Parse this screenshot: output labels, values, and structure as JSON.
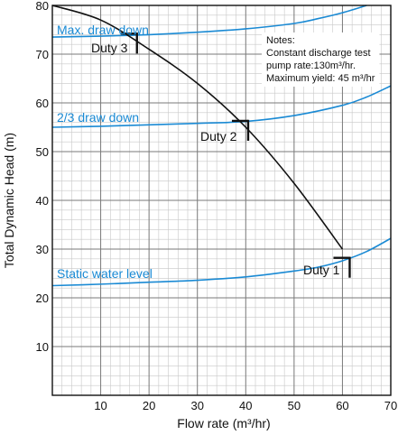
{
  "chart_data": {
    "type": "line",
    "xlabel": "Flow rate (m³/hr)",
    "ylabel": "Total Dynamic Head (m)",
    "xlim": [
      0,
      70
    ],
    "ylim": [
      0,
      80
    ],
    "xticks": [
      10,
      20,
      30,
      40,
      50,
      60,
      70
    ],
    "yticks": [
      10,
      20,
      30,
      40,
      50,
      60,
      70,
      80
    ],
    "grid": true,
    "colors": {
      "pump_curve": "#111111",
      "water_levels": "#1a8ad4",
      "grid_minor": "#c8c8c8",
      "grid_major": "#7a7a7a"
    },
    "pump_curve": {
      "x": [
        0,
        10,
        20,
        30,
        40,
        50,
        60
      ],
      "y": [
        80,
        77,
        71,
        64,
        55,
        43.5,
        30
      ]
    },
    "series": [
      {
        "name": "Max. draw down",
        "x": [
          0,
          10,
          20,
          30,
          40,
          50,
          55,
          60,
          65
        ],
        "y": [
          73.5,
          73.7,
          74,
          74.5,
          75.2,
          76.3,
          77.3,
          78.5,
          80
        ]
      },
      {
        "name": "2/3 draw down",
        "x": [
          0,
          10,
          20,
          30,
          40,
          50,
          60,
          65,
          70
        ],
        "y": [
          55,
          55.2,
          55.5,
          55.8,
          56.2,
          57.4,
          59.5,
          61.2,
          63.5
        ]
      },
      {
        "name": "Static water level",
        "x": [
          0,
          10,
          20,
          30,
          40,
          50,
          55,
          60,
          65,
          70
        ],
        "y": [
          22.5,
          22.8,
          23.2,
          23.6,
          24.3,
          25.5,
          26.3,
          27.6,
          29.5,
          32.2
        ]
      }
    ],
    "duty_points": [
      {
        "label": "Duty 1",
        "x": 61.5,
        "y": 28.2
      },
      {
        "label": "Duty 2",
        "x": 40.5,
        "y": 56.3
      },
      {
        "label": "Duty 3",
        "x": 17.5,
        "y": 74.2
      }
    ],
    "notes": [
      "Notes:",
      "Constant discharge test",
      "pump rate:130m³/hr.",
      "Maximum yield: 45 m³/hr"
    ]
  }
}
